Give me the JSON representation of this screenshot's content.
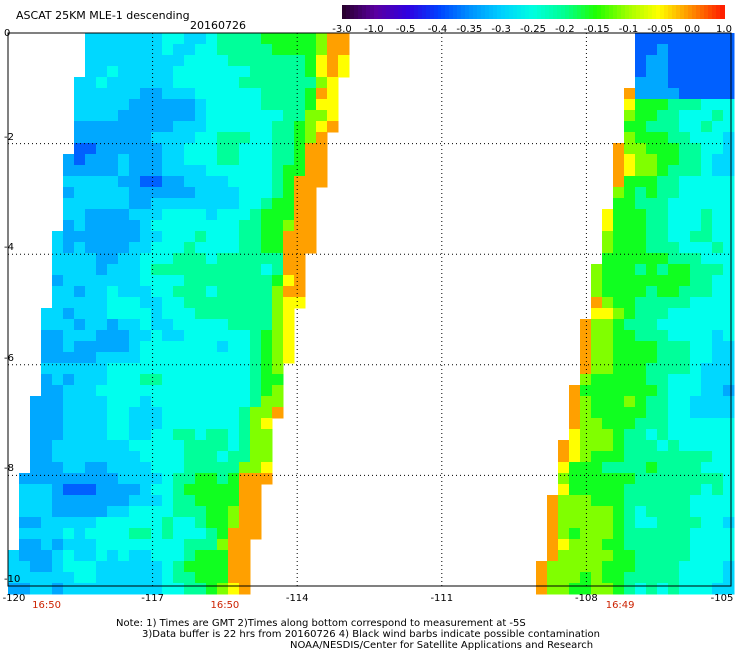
{
  "header": {
    "title": "ASCAT 25KM MLE-1 descending",
    "date": "20160726"
  },
  "colorbar": {
    "labels": [
      "-3.0",
      "-1.0",
      "-0.5",
      "-0.4",
      "-0.35",
      "-0.3",
      "-0.25",
      "-0.2",
      "-0.15",
      "-0.1",
      "-0.05",
      "0.0",
      "1.0"
    ],
    "colors": [
      "#2a0030",
      "#5a00a0",
      "#3000e0",
      "#0040ff",
      "#0090ff",
      "#00d0ff",
      "#00ffe0",
      "#00ff90",
      "#20ff00",
      "#a0ff00",
      "#ffff00",
      "#ff9000",
      "#ff2000"
    ]
  },
  "axes": {
    "y_ticks": [
      "0",
      "-2",
      "-4",
      "-6",
      "-8",
      "-10"
    ],
    "x_ticks": [
      "-120",
      "-117",
      "-114",
      "-111",
      "-108",
      "-105"
    ],
    "times": [
      "16:50",
      "16:50",
      "16:49"
    ]
  },
  "map": {
    "lon_range": [
      -120,
      -105
    ],
    "lat_range": [
      -10,
      0
    ],
    "palette": {
      "deep_blue": "#0060ff",
      "blue": "#00a8ff",
      "light_blue": "#00d8ff",
      "cyan": "#00ffee",
      "aqua_green": "#00ff9a",
      "green": "#10ff20",
      "lime": "#80ff00",
      "yellow": "#ffff00",
      "orange": "#ffa000"
    }
  },
  "notes": [
    "Note: 1) Times are GMT 2)Times along bottom correspond to measurement at -5S",
    "3)Data buffer is 22 hrs from 20160726 4) Black wind barbs indicate possible contamination",
    "NOAA/NESDIS/Center for Satellite Applications and Research"
  ]
}
